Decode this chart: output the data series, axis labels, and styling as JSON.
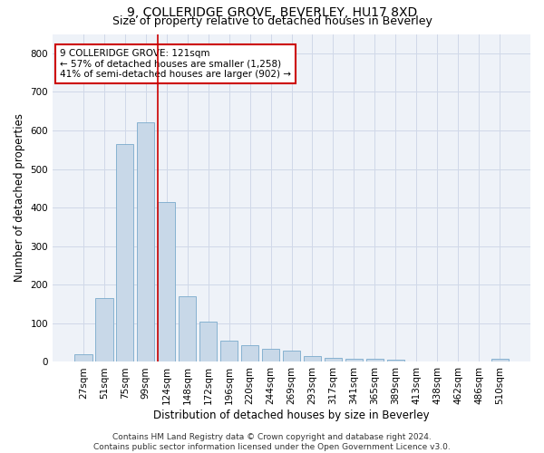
{
  "title": "9, COLLERIDGE GROVE, BEVERLEY, HU17 8XD",
  "subtitle": "Size of property relative to detached houses in Beverley",
  "xlabel": "Distribution of detached houses by size in Beverley",
  "ylabel": "Number of detached properties",
  "categories": [
    "27sqm",
    "51sqm",
    "75sqm",
    "99sqm",
    "124sqm",
    "148sqm",
    "172sqm",
    "196sqm",
    "220sqm",
    "244sqm",
    "269sqm",
    "293sqm",
    "317sqm",
    "341sqm",
    "365sqm",
    "389sqm",
    "413sqm",
    "438sqm",
    "462sqm",
    "486sqm",
    "510sqm"
  ],
  "values": [
    20,
    165,
    565,
    620,
    415,
    170,
    105,
    55,
    43,
    33,
    30,
    15,
    10,
    8,
    8,
    6,
    0,
    0,
    0,
    0,
    7
  ],
  "bar_color": "#c8d8e8",
  "bar_edge_color": "#7aaacc",
  "vline_x": 3.575,
  "vline_color": "#cc0000",
  "annotation_text": "9 COLLERIDGE GROVE: 121sqm\n← 57% of detached houses are smaller (1,258)\n41% of semi-detached houses are larger (902) →",
  "annotation_box_color": "#ffffff",
  "annotation_box_edge": "#cc0000",
  "ylim": [
    0,
    850
  ],
  "yticks": [
    0,
    100,
    200,
    300,
    400,
    500,
    600,
    700,
    800
  ],
  "grid_color": "#d0d8e8",
  "bg_color": "#eef2f8",
  "footer_text": "Contains HM Land Registry data © Crown copyright and database right 2024.\nContains public sector information licensed under the Open Government Licence v3.0.",
  "title_fontsize": 10,
  "subtitle_fontsize": 9,
  "axis_label_fontsize": 8.5,
  "tick_fontsize": 7.5,
  "annotation_fontsize": 7.5,
  "footer_fontsize": 6.5
}
